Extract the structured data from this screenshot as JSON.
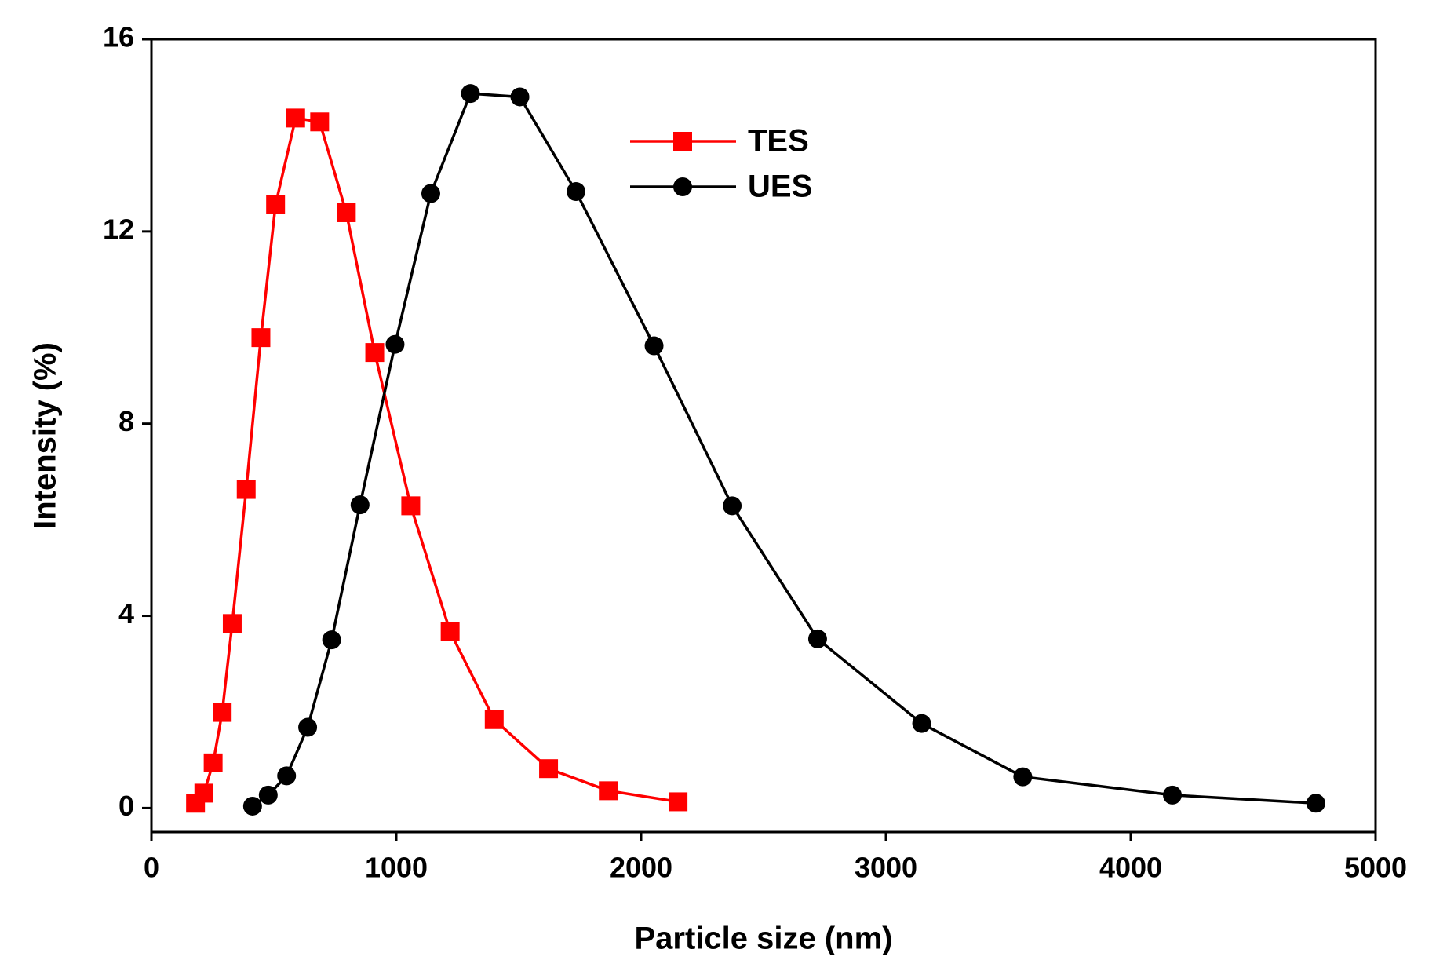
{
  "chart_data": {
    "type": "line",
    "xlabel": "Particle size (nm)",
    "ylabel": "Intensity (%)",
    "xlim": [
      0,
      5000
    ],
    "xticks": [
      0,
      1000,
      2000,
      3000,
      4000,
      5000
    ],
    "ylim": [
      -0.5,
      16
    ],
    "yticks": [
      0,
      4,
      8,
      12,
      16
    ],
    "legend": "upper center",
    "grid": false,
    "series": [
      {
        "name": "TES",
        "color": "#ff0000",
        "marker": "square",
        "x": [
          180,
          214,
          252,
          289,
          330,
          387,
          447,
          507,
          589,
          687,
          796,
          912,
          1059,
          1220,
          1400,
          1622,
          1866,
          2151
        ],
        "values": [
          0.1,
          0.31,
          0.94,
          1.99,
          3.84,
          6.63,
          9.79,
          12.56,
          14.36,
          14.28,
          12.39,
          9.48,
          6.29,
          3.67,
          1.84,
          0.82,
          0.36,
          0.13
        ]
      },
      {
        "name": "UES",
        "color": "#000000",
        "marker": "circle",
        "x": [
          413,
          477,
          552,
          638,
          736,
          852,
          995,
          1141,
          1303,
          1505,
          1734,
          2053,
          2372,
          2721,
          3146,
          3559,
          4170,
          4756
        ],
        "values": [
          0.04,
          0.27,
          0.67,
          1.68,
          3.5,
          6.31,
          9.65,
          12.79,
          14.87,
          14.8,
          12.83,
          9.62,
          6.29,
          3.52,
          1.76,
          0.65,
          0.27,
          0.1
        ]
      }
    ]
  }
}
